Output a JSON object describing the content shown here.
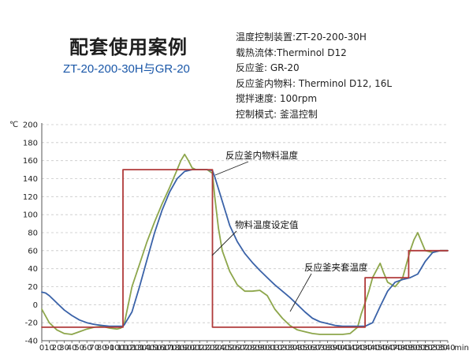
{
  "header": {
    "title": "配套使用案例",
    "subtitle": "ZT-20-200-30H与GR-20",
    "specs": [
      "温度控制装置:ZT-20-200-30H",
      "载热流体:Therminol D12",
      "反应釜: GR-20",
      "反应釜内物料: Therminol D12, 16L",
      "搅拌速度: 100rpm",
      "控制模式: 釜温控制"
    ]
  },
  "chart_data": {
    "type": "line",
    "ylabel": "℃",
    "xlabel": "min",
    "xlim": [
      0,
      540
    ],
    "ylim": [
      -40,
      200
    ],
    "xticks": [
      0,
      10,
      20,
      30,
      40,
      50,
      60,
      70,
      80,
      90,
      100,
      110,
      120,
      130,
      140,
      150,
      160,
      170,
      180,
      190,
      200,
      210,
      220,
      230,
      240,
      250,
      260,
      270,
      280,
      290,
      300,
      310,
      320,
      330,
      340,
      350,
      360,
      370,
      380,
      390,
      400,
      410,
      420,
      430,
      440,
      450,
      460,
      470,
      480,
      490,
      500,
      510,
      520,
      530,
      540
    ],
    "yticks": [
      -40,
      -20,
      0,
      20,
      40,
      60,
      80,
      100,
      120,
      140,
      160,
      180,
      200
    ],
    "grid": "horizontal-dashed",
    "series": [
      {
        "name": "物料温度设定值",
        "color": "#b03a3a",
        "x": [
          0,
          108,
          108,
          227,
          227,
          430,
          430,
          488,
          488,
          540
        ],
        "y": [
          -25,
          -25,
          150,
          150,
          -25,
          -25,
          30,
          30,
          60,
          60
        ]
      },
      {
        "name": "反应釜内物料温度",
        "color": "#3a62a8",
        "x": [
          0,
          5,
          10,
          20,
          30,
          40,
          50,
          60,
          70,
          80,
          90,
          100,
          105,
          108,
          110,
          120,
          130,
          140,
          150,
          160,
          170,
          180,
          190,
          200,
          210,
          220,
          227,
          230,
          240,
          250,
          260,
          270,
          280,
          290,
          300,
          310,
          320,
          330,
          340,
          350,
          360,
          370,
          380,
          390,
          400,
          410,
          420,
          430,
          440,
          450,
          460,
          470,
          480,
          490,
          500,
          510,
          520,
          530,
          540
        ],
        "y": [
          14,
          13,
          10,
          2,
          -6,
          -12,
          -17,
          -20,
          -22,
          -23,
          -24,
          -24,
          -24,
          -24,
          -22,
          -8,
          20,
          50,
          80,
          105,
          125,
          140,
          148,
          150,
          150,
          150,
          149,
          142,
          115,
          88,
          70,
          57,
          47,
          38,
          30,
          22,
          15,
          8,
          0,
          -8,
          -15,
          -19,
          -21,
          -23,
          -24,
          -24,
          -24,
          -24,
          -20,
          -2,
          15,
          25,
          28,
          30,
          34,
          48,
          58,
          60,
          60
        ]
      },
      {
        "name": "反应釜夹套温度",
        "color": "#8da64b",
        "x": [
          0,
          10,
          20,
          30,
          40,
          50,
          60,
          70,
          80,
          90,
          100,
          105,
          108,
          110,
          115,
          120,
          130,
          140,
          150,
          160,
          170,
          180,
          185,
          190,
          195,
          200,
          205,
          210,
          215,
          220,
          227,
          230,
          235,
          240,
          250,
          260,
          270,
          280,
          290,
          300,
          310,
          320,
          330,
          340,
          350,
          360,
          370,
          380,
          390,
          400,
          410,
          420,
          425,
          430,
          435,
          440,
          445,
          450,
          455,
          460,
          470,
          480,
          485,
          490,
          495,
          500,
          505,
          510,
          520,
          530,
          540
        ],
        "y": [
          -5,
          -20,
          -28,
          -32,
          -33,
          -30,
          -27,
          -25,
          -24,
          -26,
          -27,
          -26,
          -24,
          -20,
          0,
          20,
          45,
          70,
          92,
          112,
          130,
          150,
          160,
          167,
          160,
          152,
          150,
          150,
          150,
          150,
          146,
          120,
          85,
          60,
          37,
          22,
          15,
          15,
          16,
          10,
          -5,
          -15,
          -23,
          -28,
          -30,
          -32,
          -33,
          -33,
          -33,
          -33,
          -32,
          -25,
          -10,
          2,
          15,
          30,
          38,
          46,
          35,
          25,
          20,
          30,
          45,
          60,
          72,
          80,
          70,
          60,
          58,
          60,
          60
        ]
      }
    ],
    "annotations": [
      {
        "text": "反应釜内物料温度",
        "series": "反应釜内物料温度"
      },
      {
        "text": "物料温度设定值",
        "series": "物料温度设定值"
      },
      {
        "text": "反应釜夹套温度",
        "series": "反应釜夹套温度"
      }
    ]
  }
}
